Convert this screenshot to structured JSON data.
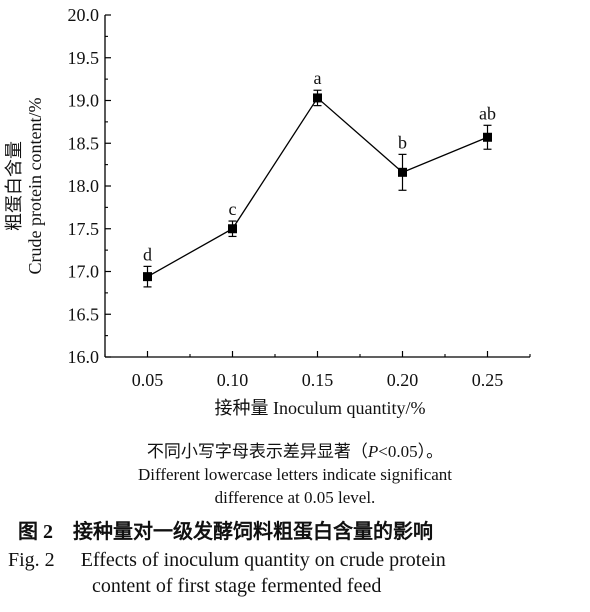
{
  "chart_data": {
    "type": "line",
    "x": [
      0.05,
      0.1,
      0.15,
      0.2,
      0.25
    ],
    "x_tick_labels": [
      "0.05",
      "0.10",
      "0.15",
      "0.20",
      "0.25"
    ],
    "xlim": [
      0.025,
      0.275
    ],
    "values": [
      16.94,
      17.5,
      19.03,
      18.16,
      18.57
    ],
    "errors": [
      0.12,
      0.09,
      0.09,
      0.21,
      0.14
    ],
    "point_labels": [
      "d",
      "c",
      "a",
      "b",
      "ab"
    ],
    "ylim": [
      16.0,
      20.0
    ],
    "y_ticks": [
      16.0,
      16.5,
      17.0,
      17.5,
      18.0,
      18.5,
      19.0,
      19.5,
      20.0
    ],
    "y_tick_labels": [
      "16.0",
      "16.5",
      "17.0",
      "17.5",
      "18.0",
      "18.5",
      "19.0",
      "19.5",
      "20.0"
    ],
    "xlabel": "接种量 Inoculum quantity/%",
    "ylabel_cn": "粗蛋白含量",
    "ylabel_en": "Crude protein content/%",
    "marker": "square",
    "grid": false,
    "line_color": "#000000"
  },
  "notes": {
    "cn_prefix": "不同小写字母表示差异显著（",
    "cn_p": "P",
    "cn_suffix": "<0.05）。",
    "en_line1": "Different lowercase letters indicate significant",
    "en_line2": "difference at 0.05 level."
  },
  "figure_title": {
    "cn_number": "图 2",
    "cn_text": "接种量对一级发酵饲料粗蛋白含量的影响",
    "en_number": "Fig. 2",
    "en_line1": "Effects of inoculum quantity on crude protein",
    "en_line2": "content of first stage fermented feed"
  }
}
